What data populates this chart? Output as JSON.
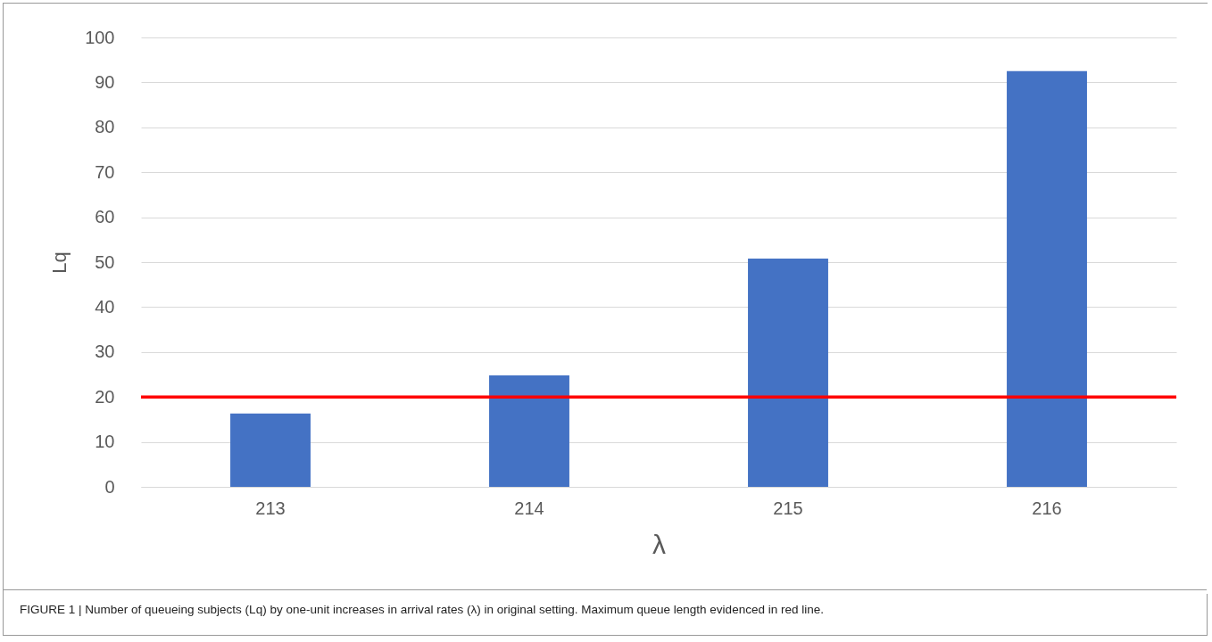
{
  "chart_data": {
    "type": "bar",
    "xlabel": "λ",
    "ylabel": "Lq",
    "categories": [
      "213",
      "214",
      "215",
      "216"
    ],
    "values": [
      16.3,
      24.8,
      50.8,
      92.5
    ],
    "color": "#4472c4",
    "ylim": [
      0,
      100
    ],
    "yticks": [
      0,
      10,
      20,
      30,
      40,
      50,
      60,
      70,
      80,
      90,
      100
    ],
    "grid": "y",
    "ref_lines": [
      {
        "axis": "y",
        "value": 20,
        "color": "#ff0000"
      }
    ],
    "annotations": [
      "FIGURE 1 | Number of queueing subjects (Lq) by one-unit increases in arrival rates (λ) in original setting. Maximum queue length evidenced in red line."
    ]
  }
}
